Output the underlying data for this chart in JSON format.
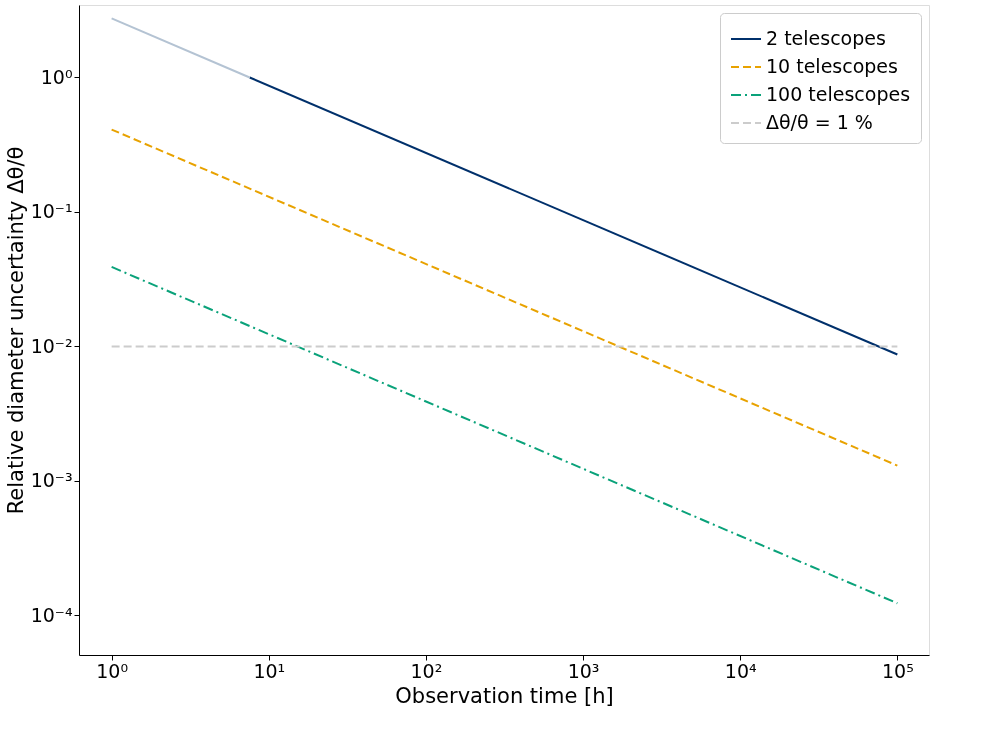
{
  "chart_data": {
    "type": "line",
    "xlabel": "Observation time [h]",
    "ylabel": "Relative diameter uncertainty  Δθ/θ",
    "log": "xy",
    "grid": false,
    "legend": "top right",
    "marker": "none",
    "xlim": [
      0.62,
      159000
    ],
    "ylim": [
      5.07e-05,
      3.46
    ],
    "xticks": [
      {
        "value": 1,
        "label": "10⁰"
      },
      {
        "value": 10,
        "label": "10¹"
      },
      {
        "value": 100,
        "label": "10²"
      },
      {
        "value": 1000,
        "label": "10³"
      },
      {
        "value": 10000,
        "label": "10⁴"
      },
      {
        "value": 100000,
        "label": "10⁵"
      }
    ],
    "yticks": [
      {
        "value": 0.0001,
        "label": "10⁻⁴"
      },
      {
        "value": 0.001,
        "label": "10⁻³"
      },
      {
        "value": 0.01,
        "label": "10⁻²"
      },
      {
        "value": 0.1,
        "label": "10⁻¹"
      },
      {
        "value": 1,
        "label": "10⁰"
      }
    ],
    "series": [
      {
        "color": "#b4c3d3",
        "line_style": "solid",
        "x": [
          1,
          7.56
        ],
        "values": [
          2.75,
          1.0
        ]
      },
      {
        "name": "2 telescopes",
        "color": "#00306b",
        "line_style": "solid",
        "x": [
          7.56,
          100000
        ],
        "values": [
          1.0,
          0.0087
        ]
      },
      {
        "name": "10 telescopes",
        "color": "#e8a200",
        "line_style": "dashed",
        "x": [
          1,
          100000
        ],
        "values": [
          0.41,
          0.0013
        ]
      },
      {
        "name": "100 telescopes",
        "color": "#0aa27a",
        "line_style": "dashdot",
        "x": [
          1,
          100000
        ],
        "values": [
          0.039,
          0.000123
        ]
      }
    ],
    "ref_lines": [
      {
        "axis": "y",
        "value": 0.01,
        "label": "Δθ/θ = 1 %",
        "color": "#cccccc",
        "line_style": "dashed"
      }
    ]
  }
}
